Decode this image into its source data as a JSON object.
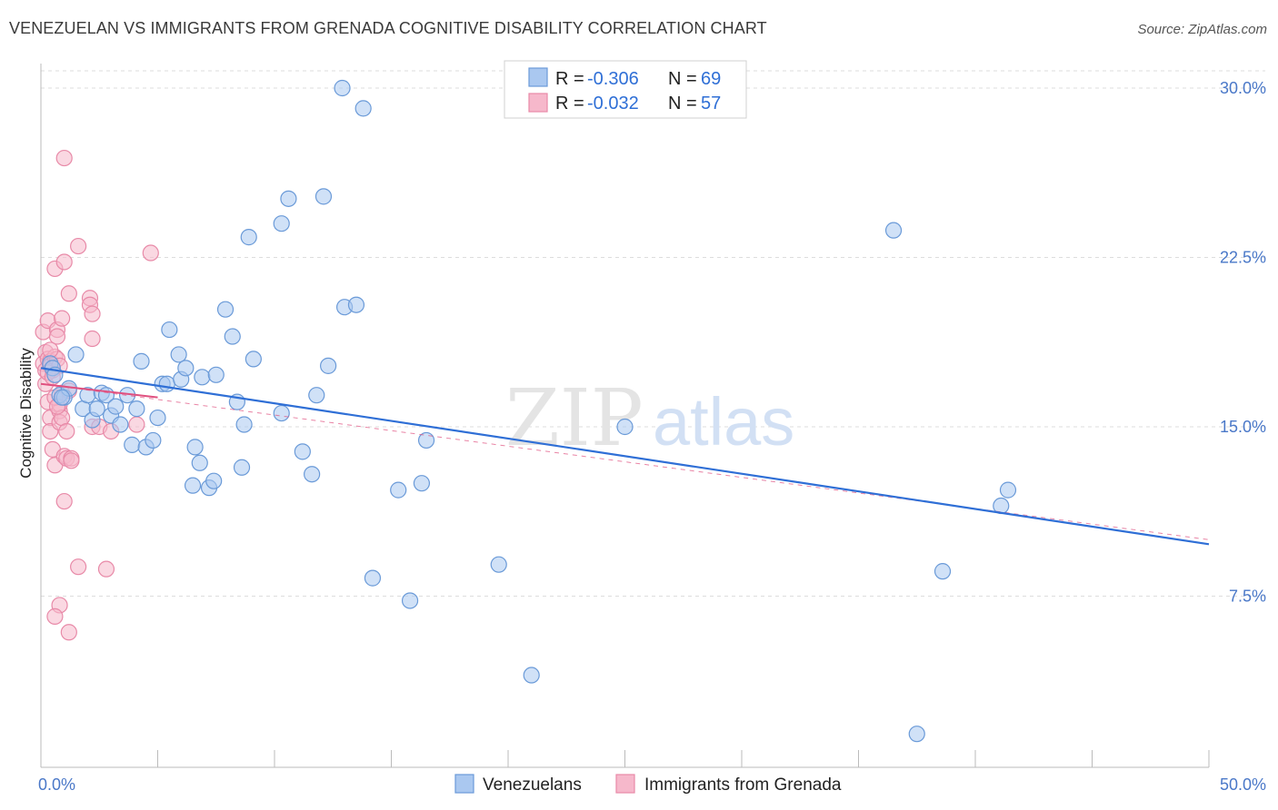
{
  "header": {
    "title": "VENEZUELAN VS IMMIGRANTS FROM GRENADA COGNITIVE DISABILITY CORRELATION CHART",
    "source": "Source: ZipAtlas.com"
  },
  "watermark": {
    "zip": "ZIP",
    "atlas": "atlas"
  },
  "colors": {
    "blue_fill": "#aac8f0",
    "blue_stroke": "#6a9ad8",
    "blue_line": "#2f6fd6",
    "pink_fill": "#f6b8cb",
    "pink_stroke": "#e88aa8",
    "pink_line": "#e0507f",
    "grid": "#dddddd",
    "tick_label": "#4a78c8"
  },
  "legend": {
    "rows": [
      {
        "r_label": "R = ",
        "r_value": "-0.306",
        "n_label": "N = ",
        "n_value": "69"
      },
      {
        "r_label": "R = ",
        "r_value": "-0.032",
        "n_label": "N = ",
        "n_value": "57"
      }
    ]
  },
  "chart_data": {
    "type": "scatter",
    "title": "VENEZUELAN VS IMMIGRANTS FROM GRENADA COGNITIVE DISABILITY CORRELATION CHART",
    "xlabel": "",
    "ylabel": "Cognitive Disability",
    "xlim": [
      0,
      50
    ],
    "ylim": [
      0,
      30.7
    ],
    "x_tick_labels": [
      "0.0%",
      "50.0%"
    ],
    "y_ticks": [
      7.5,
      15.0,
      22.5,
      30.0
    ],
    "y_tick_labels": [
      "7.5%",
      "15.0%",
      "22.5%",
      "30.0%"
    ],
    "grid": true,
    "series": [
      {
        "name": "Venezuelans",
        "r": -0.306,
        "n": 69,
        "trend": {
          "x": [
            0,
            50
          ],
          "y": [
            17.6,
            9.8
          ],
          "style": "solid"
        },
        "points": [
          [
            0.4,
            17.8
          ],
          [
            0.5,
            17.6
          ],
          [
            0.6,
            17.3
          ],
          [
            0.8,
            16.4
          ],
          [
            1.0,
            16.3
          ],
          [
            1.2,
            16.7
          ],
          [
            1.5,
            18.2
          ],
          [
            1.8,
            15.8
          ],
          [
            2.0,
            16.4
          ],
          [
            2.2,
            15.3
          ],
          [
            2.4,
            15.8
          ],
          [
            2.6,
            16.5
          ],
          [
            2.8,
            16.4
          ],
          [
            3.0,
            15.5
          ],
          [
            3.2,
            15.9
          ],
          [
            3.4,
            15.1
          ],
          [
            3.7,
            16.4
          ],
          [
            3.9,
            14.2
          ],
          [
            4.1,
            15.8
          ],
          [
            4.3,
            17.9
          ],
          [
            4.5,
            14.1
          ],
          [
            4.8,
            14.4
          ],
          [
            5.0,
            15.4
          ],
          [
            5.2,
            16.9
          ],
          [
            5.4,
            16.9
          ],
          [
            5.5,
            19.3
          ],
          [
            5.9,
            18.2
          ],
          [
            6.0,
            17.1
          ],
          [
            6.2,
            17.6
          ],
          [
            6.5,
            12.4
          ],
          [
            6.6,
            14.1
          ],
          [
            6.8,
            13.4
          ],
          [
            6.9,
            17.2
          ],
          [
            7.2,
            12.3
          ],
          [
            7.4,
            12.6
          ],
          [
            7.5,
            17.3
          ],
          [
            7.9,
            20.2
          ],
          [
            8.2,
            19.0
          ],
          [
            8.4,
            16.1
          ],
          [
            8.6,
            13.2
          ],
          [
            8.7,
            15.1
          ],
          [
            8.9,
            23.4
          ],
          [
            9.1,
            18.0
          ],
          [
            10.3,
            24.0
          ],
          [
            10.3,
            15.6
          ],
          [
            10.6,
            25.1
          ],
          [
            11.2,
            13.9
          ],
          [
            11.6,
            12.9
          ],
          [
            11.8,
            16.4
          ],
          [
            12.1,
            25.2
          ],
          [
            12.3,
            17.7
          ],
          [
            12.9,
            30.0
          ],
          [
            13.0,
            20.3
          ],
          [
            13.5,
            20.4
          ],
          [
            13.8,
            29.1
          ],
          [
            14.2,
            8.3
          ],
          [
            15.8,
            7.3
          ],
          [
            15.3,
            12.2
          ],
          [
            16.3,
            12.5
          ],
          [
            16.5,
            14.4
          ],
          [
            19.6,
            8.9
          ],
          [
            21.0,
            4.0
          ],
          [
            25.0,
            15.0
          ],
          [
            36.5,
            23.7
          ],
          [
            37.5,
            1.4
          ],
          [
            38.6,
            8.6
          ],
          [
            41.1,
            11.5
          ],
          [
            41.4,
            12.2
          ],
          [
            0.9,
            16.3
          ]
        ]
      },
      {
        "name": "Immigrants from Grenada",
        "r": -0.032,
        "n": 57,
        "trend": {
          "x": [
            0,
            5
          ],
          "y": [
            16.9,
            16.3
          ],
          "style": "solid"
        },
        "trend_extended": {
          "x": [
            0,
            50
          ],
          "y": [
            16.9,
            10.0
          ],
          "style": "dashed"
        },
        "points": [
          [
            0.1,
            17.8
          ],
          [
            0.1,
            19.2
          ],
          [
            0.2,
            18.3
          ],
          [
            0.2,
            17.5
          ],
          [
            0.3,
            16.1
          ],
          [
            0.3,
            19.7
          ],
          [
            0.3,
            18.0
          ],
          [
            0.4,
            17.9
          ],
          [
            0.4,
            17.7
          ],
          [
            0.4,
            15.4
          ],
          [
            0.4,
            14.8
          ],
          [
            0.5,
            17.5
          ],
          [
            0.5,
            14.0
          ],
          [
            0.6,
            18.1
          ],
          [
            0.6,
            13.3
          ],
          [
            0.6,
            22.0
          ],
          [
            0.7,
            19.3
          ],
          [
            0.7,
            19.0
          ],
          [
            0.7,
            18.0
          ],
          [
            0.8,
            15.7
          ],
          [
            0.8,
            15.2
          ],
          [
            0.8,
            16.0
          ],
          [
            0.8,
            17.7
          ],
          [
            0.9,
            19.8
          ],
          [
            0.9,
            16.5
          ],
          [
            0.9,
            15.4
          ],
          [
            1.0,
            22.3
          ],
          [
            1.0,
            13.7
          ],
          [
            1.0,
            11.7
          ],
          [
            1.0,
            26.9
          ],
          [
            1.1,
            14.8
          ],
          [
            1.1,
            13.6
          ],
          [
            1.2,
            16.6
          ],
          [
            1.2,
            20.9
          ],
          [
            1.3,
            13.6
          ],
          [
            1.3,
            13.5
          ],
          [
            1.6,
            23.0
          ],
          [
            1.6,
            8.8
          ],
          [
            2.1,
            20.7
          ],
          [
            2.1,
            20.4
          ],
          [
            2.2,
            20.0
          ],
          [
            2.2,
            18.9
          ],
          [
            2.2,
            15.0
          ],
          [
            2.5,
            15.0
          ],
          [
            2.8,
            8.7
          ],
          [
            3.0,
            14.8
          ],
          [
            4.1,
            15.1
          ],
          [
            4.7,
            22.7
          ],
          [
            0.2,
            16.9
          ],
          [
            0.3,
            17.4
          ],
          [
            0.6,
            16.3
          ],
          [
            0.7,
            15.9
          ],
          [
            0.5,
            17.2
          ],
          [
            0.8,
            7.1
          ],
          [
            0.6,
            6.6
          ],
          [
            1.2,
            5.9
          ],
          [
            0.4,
            18.4
          ]
        ]
      }
    ]
  },
  "bottom_legend": {
    "items": [
      "Venezuelans",
      "Immigrants from Grenada"
    ]
  }
}
